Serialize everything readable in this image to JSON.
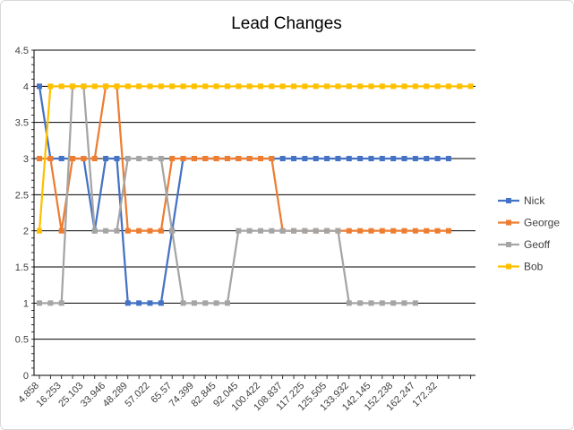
{
  "chart_data": {
    "type": "line",
    "title": "Lead Changes",
    "xlabel": "",
    "ylabel": "",
    "ylim": [
      0,
      4.5
    ],
    "yticks": [
      "0",
      "0.5",
      "1",
      "1.5",
      "2",
      "2.5",
      "3",
      "3.5",
      "4",
      "4.5"
    ],
    "grid": true,
    "legend_position": "right",
    "x_tick_labels": [
      "4.858",
      "16.253",
      "25.103",
      "33.946",
      "48.289",
      "57.022",
      "65.57",
      "74.399",
      "82.845",
      "92.045",
      "100.422",
      "108.837",
      "117.225",
      "125.505",
      "133.932",
      "142.145",
      "152.238",
      "162.247",
      "172.32"
    ],
    "series": [
      {
        "name": "Nick",
        "color": "#4472c4",
        "values": [
          4,
          3,
          3,
          3,
          3,
          2,
          3,
          3,
          1,
          1,
          1,
          1,
          2,
          3,
          3,
          3,
          3,
          3,
          3,
          3,
          3,
          3,
          3,
          3,
          3,
          3,
          3,
          3,
          3,
          3,
          3,
          3,
          3,
          3,
          3,
          3,
          3,
          3
        ]
      },
      {
        "name": "George",
        "color": "#ed7d31",
        "values": [
          3,
          3,
          2,
          3,
          3,
          3,
          4,
          4,
          2,
          2,
          2,
          2,
          3,
          3,
          3,
          3,
          3,
          3,
          3,
          3,
          3,
          3,
          2,
          2,
          2,
          2,
          2,
          2,
          2,
          2,
          2,
          2,
          2,
          2,
          2,
          2,
          2,
          2
        ]
      },
      {
        "name": "Geoff",
        "color": "#a5a5a5",
        "values": [
          1,
          1,
          1,
          4,
          4,
          2,
          2,
          2,
          3,
          3,
          3,
          3,
          2,
          1,
          1,
          1,
          1,
          1,
          2,
          2,
          2,
          2,
          2,
          2,
          2,
          2,
          2,
          2,
          1,
          1,
          1,
          1,
          1,
          1,
          1
        ]
      },
      {
        "name": "Bob",
        "color": "#ffc000",
        "values": [
          2,
          4,
          4,
          4,
          4,
          4,
          4,
          4,
          4,
          4,
          4,
          4,
          4,
          4,
          4,
          4,
          4,
          4,
          4,
          4,
          4,
          4,
          4,
          4,
          4,
          4,
          4,
          4,
          4,
          4,
          4,
          4,
          4,
          4,
          4,
          4,
          4,
          4,
          4,
          4
        ]
      }
    ]
  }
}
